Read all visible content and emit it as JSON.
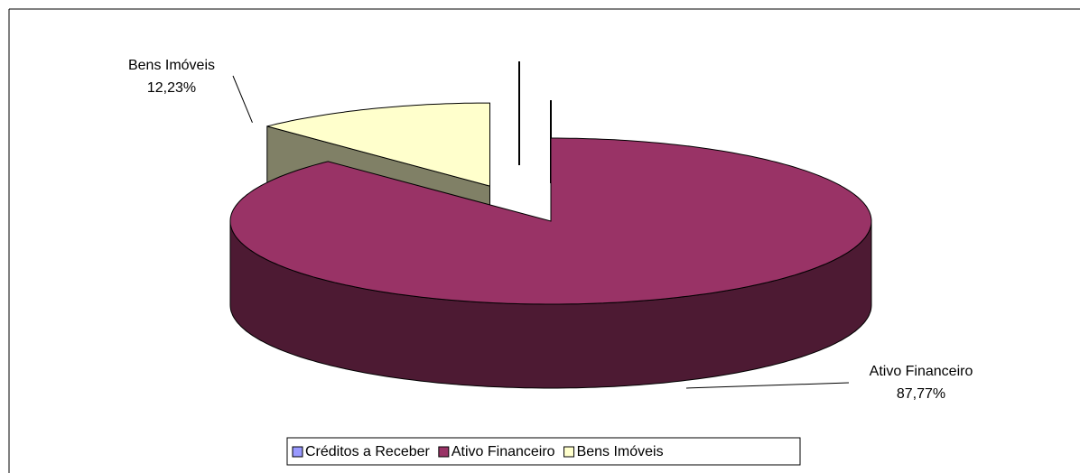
{
  "chart_data": {
    "type": "pie",
    "categories": [
      "Créditos a Receber",
      "Ativo Financeiro",
      "Bens Imóveis"
    ],
    "values": [
      0,
      87.77,
      12.23
    ],
    "value_labels": [
      null,
      "87,77%",
      "12,23%"
    ],
    "colors": [
      "#9999ff",
      "#993366",
      "#ffffcc"
    ],
    "legend": "bottom"
  }
}
